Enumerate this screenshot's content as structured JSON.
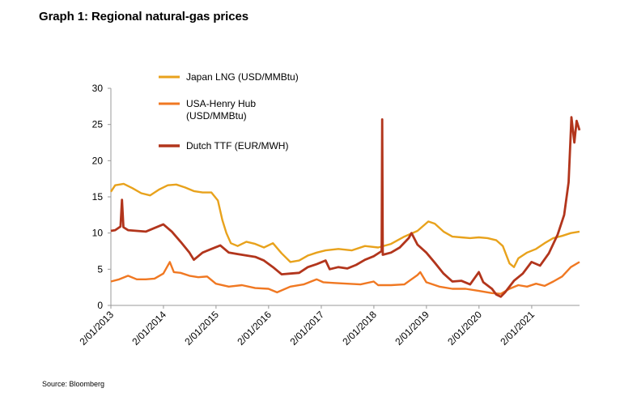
{
  "title": "Graph 1: Regional natural-gas prices",
  "source": "Source: Bloomberg",
  "chart_data": {
    "type": "line",
    "title": "Graph 1: Regional natural-gas prices",
    "xlabel": "",
    "ylabel": "",
    "ylim": [
      0,
      30
    ],
    "y_ticks": [
      "0",
      "5",
      "10",
      "15",
      "20",
      "25",
      "30"
    ],
    "x_ticks": [
      "2/01/2013",
      "2/01/2014",
      "2/01/2015",
      "2/01/2016",
      "2/01/2017",
      "2/01/2018",
      "2/01/2019",
      "2/01/2020",
      "2/01/2021"
    ],
    "xlim": [
      "2013-01-02",
      "2021-11-30"
    ],
    "grid": false,
    "legend_position": "top-left",
    "series": [
      {
        "name": "Japan LNG (USD/MMBtu)",
        "color": "#E8A21C",
        "points": [
          [
            "2013-01-02",
            15.7
          ],
          [
            "2013-02-01",
            16.6
          ],
          [
            "2013-04-01",
            16.8
          ],
          [
            "2013-06-01",
            16.2
          ],
          [
            "2013-08-01",
            15.5
          ],
          [
            "2013-10-01",
            15.2
          ],
          [
            "2013-12-01",
            16.0
          ],
          [
            "2014-02-01",
            16.6
          ],
          [
            "2014-04-01",
            16.7
          ],
          [
            "2014-06-01",
            16.3
          ],
          [
            "2014-08-01",
            15.8
          ],
          [
            "2014-10-01",
            15.6
          ],
          [
            "2014-12-01",
            15.6
          ],
          [
            "2015-01-15",
            14.5
          ],
          [
            "2015-02-15",
            11.8
          ],
          [
            "2015-03-15",
            10.0
          ],
          [
            "2015-04-15",
            8.6
          ],
          [
            "2015-06-01",
            8.2
          ],
          [
            "2015-08-01",
            8.8
          ],
          [
            "2015-10-01",
            8.5
          ],
          [
            "2015-12-01",
            8.0
          ],
          [
            "2016-02-01",
            8.6
          ],
          [
            "2016-04-01",
            7.2
          ],
          [
            "2016-06-01",
            6.0
          ],
          [
            "2016-08-01",
            6.2
          ],
          [
            "2016-10-01",
            6.9
          ],
          [
            "2016-12-01",
            7.3
          ],
          [
            "2017-02-01",
            7.6
          ],
          [
            "2017-05-01",
            7.8
          ],
          [
            "2017-08-01",
            7.6
          ],
          [
            "2017-11-01",
            8.2
          ],
          [
            "2018-02-01",
            8.0
          ],
          [
            "2018-05-01",
            8.5
          ],
          [
            "2018-08-01",
            9.5
          ],
          [
            "2018-11-01",
            10.3
          ],
          [
            "2019-01-15",
            11.6
          ],
          [
            "2019-03-01",
            11.3
          ],
          [
            "2019-05-01",
            10.2
          ],
          [
            "2019-07-01",
            9.5
          ],
          [
            "2019-09-01",
            9.4
          ],
          [
            "2019-11-01",
            9.3
          ],
          [
            "2020-01-01",
            9.4
          ],
          [
            "2020-03-01",
            9.3
          ],
          [
            "2020-05-01",
            9.0
          ],
          [
            "2020-06-15",
            8.2
          ],
          [
            "2020-08-01",
            5.8
          ],
          [
            "2020-09-01",
            5.3
          ],
          [
            "2020-10-01",
            6.5
          ],
          [
            "2020-12-01",
            7.3
          ],
          [
            "2021-02-01",
            7.8
          ],
          [
            "2021-04-01",
            8.6
          ],
          [
            "2021-06-01",
            9.3
          ],
          [
            "2021-08-01",
            9.6
          ],
          [
            "2021-10-01",
            10.0
          ],
          [
            "2021-11-30",
            10.2
          ]
        ]
      },
      {
        "name": "USA-Henry Hub (USD/MMBtu)",
        "color": "#F07822",
        "points": [
          [
            "2013-01-02",
            3.3
          ],
          [
            "2013-03-01",
            3.6
          ],
          [
            "2013-05-01",
            4.1
          ],
          [
            "2013-07-01",
            3.6
          ],
          [
            "2013-09-01",
            3.6
          ],
          [
            "2013-11-01",
            3.7
          ],
          [
            "2014-01-01",
            4.4
          ],
          [
            "2014-02-15",
            6.0
          ],
          [
            "2014-03-15",
            4.6
          ],
          [
            "2014-05-01",
            4.5
          ],
          [
            "2014-07-01",
            4.1
          ],
          [
            "2014-09-01",
            3.9
          ],
          [
            "2014-11-01",
            4.0
          ],
          [
            "2015-01-01",
            3.0
          ],
          [
            "2015-04-01",
            2.6
          ],
          [
            "2015-07-01",
            2.8
          ],
          [
            "2015-10-01",
            2.4
          ],
          [
            "2016-01-01",
            2.3
          ],
          [
            "2016-03-01",
            1.8
          ],
          [
            "2016-06-01",
            2.6
          ],
          [
            "2016-09-01",
            2.9
          ],
          [
            "2016-12-01",
            3.6
          ],
          [
            "2017-01-15",
            3.2
          ],
          [
            "2017-04-01",
            3.1
          ],
          [
            "2017-07-01",
            3.0
          ],
          [
            "2017-10-01",
            2.9
          ],
          [
            "2018-01-01",
            3.3
          ],
          [
            "2018-02-01",
            2.8
          ],
          [
            "2018-05-01",
            2.8
          ],
          [
            "2018-08-01",
            2.9
          ],
          [
            "2018-11-01",
            4.2
          ],
          [
            "2018-11-20",
            4.6
          ],
          [
            "2019-01-01",
            3.2
          ],
          [
            "2019-04-01",
            2.6
          ],
          [
            "2019-07-01",
            2.3
          ],
          [
            "2019-10-01",
            2.3
          ],
          [
            "2020-01-01",
            2.0
          ],
          [
            "2020-04-01",
            1.7
          ],
          [
            "2020-06-01",
            1.6
          ],
          [
            "2020-08-01",
            2.3
          ],
          [
            "2020-10-01",
            2.8
          ],
          [
            "2020-12-01",
            2.6
          ],
          [
            "2021-02-01",
            3.0
          ],
          [
            "2021-04-01",
            2.7
          ],
          [
            "2021-06-01",
            3.3
          ],
          [
            "2021-08-01",
            4.0
          ],
          [
            "2021-10-01",
            5.3
          ],
          [
            "2021-11-30",
            6.0
          ]
        ]
      },
      {
        "name": "Dutch TTF (EUR/MWH)",
        "color": "#B2351C",
        "points": [
          [
            "2013-01-02",
            10.3
          ],
          [
            "2013-02-01",
            10.4
          ],
          [
            "2013-03-10",
            10.9
          ],
          [
            "2013-03-20",
            14.6
          ],
          [
            "2013-03-30",
            10.8
          ],
          [
            "2013-05-01",
            10.4
          ],
          [
            "2013-07-01",
            10.3
          ],
          [
            "2013-09-01",
            10.2
          ],
          [
            "2013-11-01",
            10.7
          ],
          [
            "2014-01-01",
            11.2
          ],
          [
            "2014-03-01",
            10.2
          ],
          [
            "2014-05-01",
            8.8
          ],
          [
            "2014-07-01",
            7.3
          ],
          [
            "2014-08-01",
            6.3
          ],
          [
            "2014-10-01",
            7.3
          ],
          [
            "2014-12-01",
            7.8
          ],
          [
            "2015-02-01",
            8.3
          ],
          [
            "2015-04-01",
            7.3
          ],
          [
            "2015-06-01",
            7.1
          ],
          [
            "2015-08-01",
            6.9
          ],
          [
            "2015-10-01",
            6.7
          ],
          [
            "2015-12-01",
            6.2
          ],
          [
            "2016-02-01",
            5.3
          ],
          [
            "2016-04-01",
            4.3
          ],
          [
            "2016-06-01",
            4.4
          ],
          [
            "2016-08-01",
            4.5
          ],
          [
            "2016-10-01",
            5.3
          ],
          [
            "2016-12-01",
            5.7
          ],
          [
            "2017-02-01",
            6.2
          ],
          [
            "2017-03-01",
            5.0
          ],
          [
            "2017-05-01",
            5.3
          ],
          [
            "2017-07-01",
            5.1
          ],
          [
            "2017-09-01",
            5.6
          ],
          [
            "2017-11-01",
            6.3
          ],
          [
            "2018-01-01",
            6.8
          ],
          [
            "2018-02-25",
            7.5
          ],
          [
            "2018-03-01",
            25.7
          ],
          [
            "2018-03-05",
            7.0
          ],
          [
            "2018-05-01",
            7.3
          ],
          [
            "2018-07-01",
            8.0
          ],
          [
            "2018-09-01",
            9.3
          ],
          [
            "2018-09-20",
            10.0
          ],
          [
            "2018-11-01",
            8.4
          ],
          [
            "2019-01-01",
            7.3
          ],
          [
            "2019-03-01",
            5.9
          ],
          [
            "2019-05-01",
            4.4
          ],
          [
            "2019-07-01",
            3.3
          ],
          [
            "2019-09-01",
            3.4
          ],
          [
            "2019-11-01",
            2.9
          ],
          [
            "2020-01-01",
            4.6
          ],
          [
            "2020-02-01",
            3.2
          ],
          [
            "2020-04-01",
            2.3
          ],
          [
            "2020-05-01",
            1.5
          ],
          [
            "2020-06-01",
            1.2
          ],
          [
            "2020-07-01",
            1.8
          ],
          [
            "2020-09-01",
            3.4
          ],
          [
            "2020-11-01",
            4.4
          ],
          [
            "2021-01-01",
            6.0
          ],
          [
            "2021-03-01",
            5.5
          ],
          [
            "2021-05-01",
            7.2
          ],
          [
            "2021-07-01",
            9.8
          ],
          [
            "2021-08-15",
            12.5
          ],
          [
            "2021-09-15",
            17.0
          ],
          [
            "2021-10-05",
            26.0
          ],
          [
            "2021-10-25",
            22.5
          ],
          [
            "2021-11-10",
            25.5
          ],
          [
            "2021-11-30",
            24.2
          ]
        ]
      }
    ]
  }
}
